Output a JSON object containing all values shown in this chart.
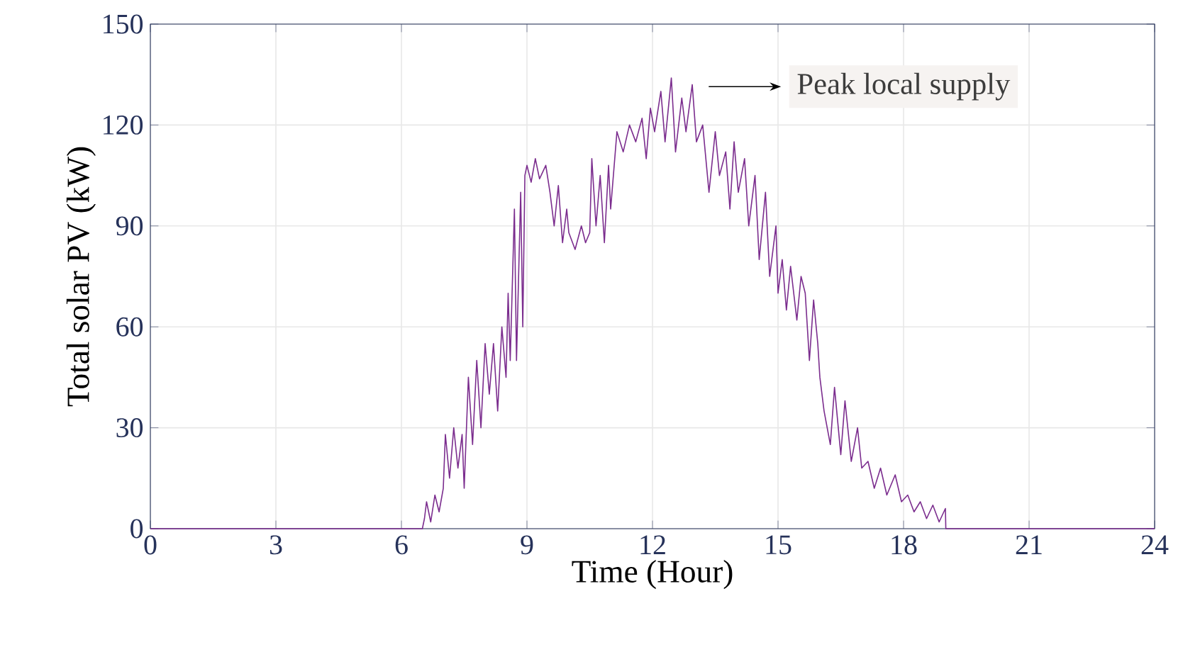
{
  "chart_data": {
    "type": "line",
    "xlabel": "Time (Hour)",
    "ylabel": "Total solar PV (kW)",
    "xlim": [
      0,
      24
    ],
    "xticks": [
      0,
      3,
      6,
      9,
      12,
      15,
      18,
      21,
      24
    ],
    "ylim": [
      0,
      150
    ],
    "yticks": [
      0,
      30,
      60,
      90,
      120,
      150
    ],
    "grid": true,
    "annotations": [
      "Peak local supply"
    ],
    "series": [
      {
        "color": "#7b2d8e",
        "x": [
          0,
          6.5,
          6.55,
          6.6,
          6.7,
          6.8,
          6.9,
          7.0,
          7.05,
          7.15,
          7.25,
          7.35,
          7.45,
          7.5,
          7.6,
          7.7,
          7.8,
          7.9,
          8.0,
          8.1,
          8.2,
          8.3,
          8.4,
          8.5,
          8.55,
          8.6,
          8.7,
          8.75,
          8.85,
          8.9,
          8.95,
          9.0,
          9.1,
          9.2,
          9.3,
          9.45,
          9.55,
          9.65,
          9.75,
          9.85,
          9.95,
          10.0,
          10.15,
          10.3,
          10.4,
          10.5,
          10.55,
          10.65,
          10.75,
          10.85,
          10.95,
          11.0,
          11.15,
          11.3,
          11.45,
          11.6,
          11.75,
          11.85,
          11.95,
          12.05,
          12.2,
          12.3,
          12.45,
          12.55,
          12.7,
          12.8,
          12.95,
          13.05,
          13.2,
          13.35,
          13.5,
          13.6,
          13.75,
          13.85,
          13.95,
          14.05,
          14.2,
          14.3,
          14.45,
          14.55,
          14.7,
          14.8,
          14.95,
          15.0,
          15.1,
          15.2,
          15.3,
          15.45,
          15.55,
          15.65,
          15.75,
          15.85,
          15.95,
          16.0,
          16.1,
          16.25,
          16.35,
          16.5,
          16.6,
          16.75,
          16.9,
          17.0,
          17.15,
          17.3,
          17.45,
          17.6,
          17.8,
          17.95,
          18.1,
          18.25,
          18.4,
          18.55,
          18.7,
          18.85,
          19.0,
          19.01,
          24
        ],
        "values": [
          0,
          0,
          3,
          8,
          2,
          10,
          5,
          12,
          28,
          15,
          30,
          18,
          28,
          12,
          45,
          25,
          50,
          30,
          55,
          40,
          55,
          35,
          60,
          45,
          70,
          50,
          95,
          50,
          100,
          60,
          105,
          108,
          103,
          110,
          104,
          108,
          100,
          90,
          102,
          85,
          95,
          88,
          83,
          90,
          85,
          88,
          110,
          90,
          105,
          85,
          108,
          95,
          118,
          112,
          120,
          115,
          122,
          110,
          125,
          118,
          130,
          115,
          134,
          112,
          128,
          118,
          132,
          115,
          120,
          100,
          118,
          105,
          112,
          95,
          115,
          100,
          110,
          90,
          105,
          80,
          100,
          75,
          90,
          70,
          80,
          65,
          78,
          62,
          75,
          70,
          50,
          68,
          55,
          45,
          35,
          25,
          42,
          22,
          38,
          20,
          30,
          18,
          20,
          12,
          18,
          10,
          16,
          8,
          10,
          5,
          8,
          3,
          7,
          2,
          6,
          0,
          0
        ]
      }
    ]
  }
}
